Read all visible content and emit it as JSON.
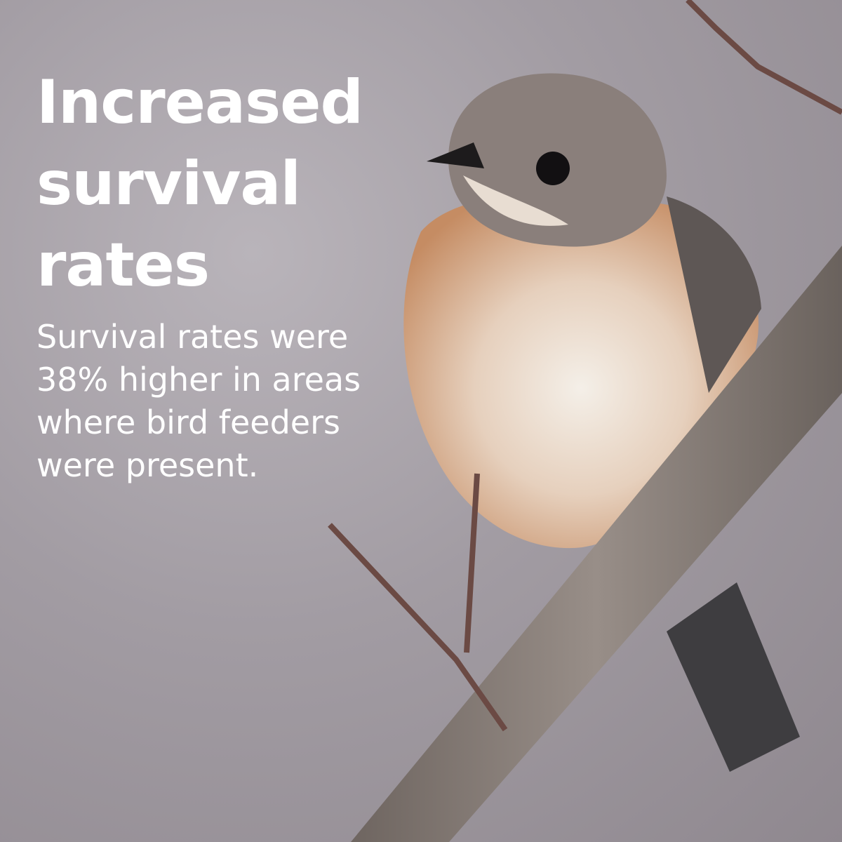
{
  "headline": "Increased survival rates",
  "body": "Survival rates were 38% higher in areas where bird feeders were present."
}
